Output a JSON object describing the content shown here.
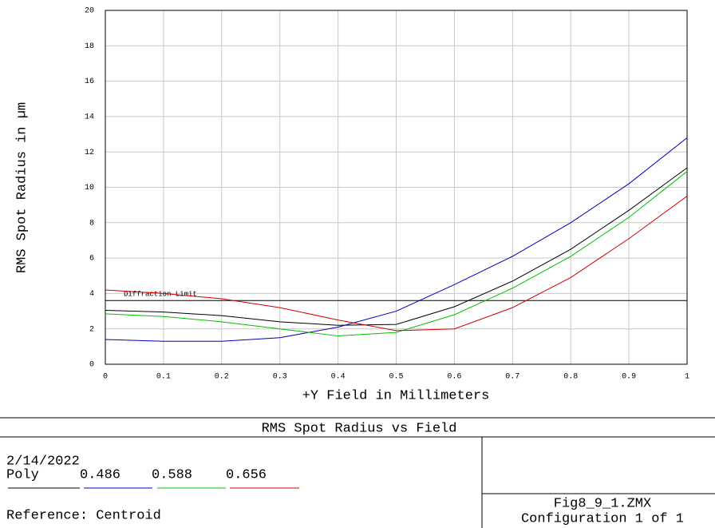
{
  "chart_data": {
    "type": "line",
    "title": "RMS Spot Radius vs Field",
    "x_label": "+Y Field in Millimeters",
    "y_label": "RMS Spot Radius in µm",
    "x": [
      0,
      0.1,
      0.2,
      0.3,
      0.4,
      0.5,
      0.6,
      0.7,
      0.8,
      0.9,
      1
    ],
    "series": [
      {
        "name": "Poly",
        "color": "#000000",
        "values": [
          3.05,
          2.95,
          2.75,
          2.4,
          2.2,
          2.25,
          3.25,
          4.7,
          6.5,
          8.7,
          11.1
        ]
      },
      {
        "name": "0.486",
        "color": "#0000c0",
        "values": [
          1.4,
          1.3,
          1.3,
          1.5,
          2.1,
          3.0,
          4.5,
          6.1,
          8.0,
          10.2,
          12.8
        ]
      },
      {
        "name": "0.588",
        "color": "#00c000",
        "values": [
          2.85,
          2.7,
          2.4,
          2.0,
          1.6,
          1.8,
          2.8,
          4.3,
          6.1,
          8.3,
          10.9
        ]
      },
      {
        "name": "0.656",
        "color": "#d00000",
        "values": [
          4.2,
          4.0,
          3.7,
          3.2,
          2.5,
          1.9,
          2.0,
          3.2,
          4.9,
          7.1,
          9.5
        ]
      }
    ],
    "diffraction_limit": {
      "label": "Diffraction Limit",
      "value": 3.6
    },
    "xlim": [
      0,
      1
    ],
    "xticks": [
      0,
      0.1,
      0.2,
      0.3,
      0.4,
      0.5,
      0.6,
      0.7,
      0.8,
      0.9,
      1
    ],
    "ylim": [
      0,
      20
    ],
    "yticks": [
      0,
      2,
      4,
      6,
      8,
      10,
      12,
      14,
      16,
      18,
      20
    ],
    "grid": true,
    "date": "2/14/2022",
    "reference": "Reference: Centroid",
    "file": "Fig8_9_1.ZMX",
    "configuration": "Configuration 1 of 1"
  }
}
